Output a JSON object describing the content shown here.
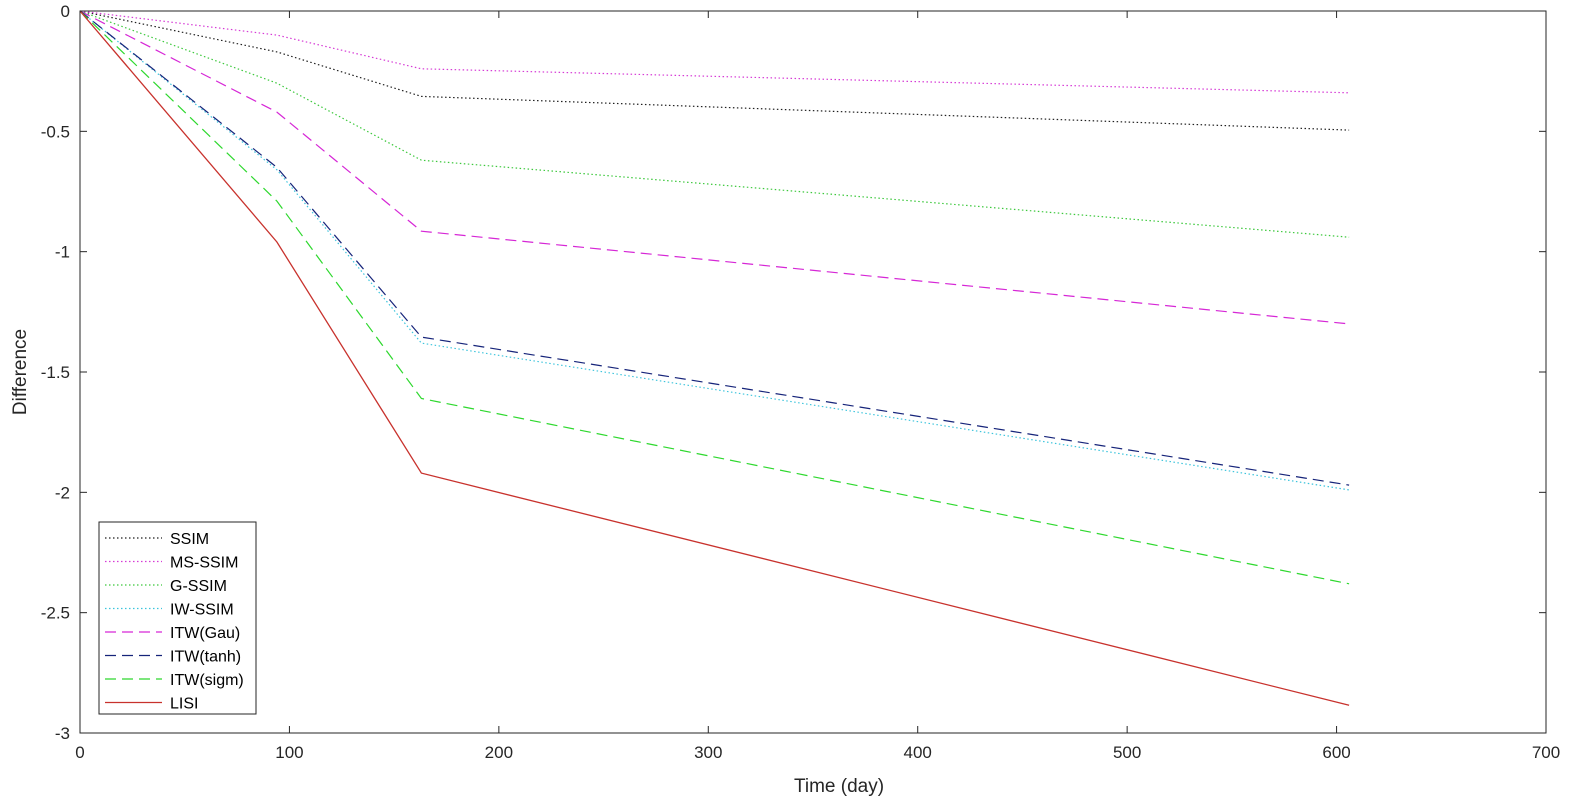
{
  "chart_data": {
    "type": "line",
    "title": "",
    "xlabel": "Time (day)",
    "ylabel": "Difference",
    "xlim": [
      0,
      700
    ],
    "ylim": [
      -3,
      0
    ],
    "xticks": [
      0,
      100,
      200,
      300,
      400,
      500,
      600,
      700
    ],
    "yticks": [
      0,
      -0.5,
      -1,
      -1.5,
      -2,
      -2.5,
      -3
    ],
    "xtick_labels": [
      "0",
      "100",
      "200",
      "300",
      "400",
      "500",
      "600",
      "700"
    ],
    "ytick_labels": [
      "0",
      "-0.5",
      "-1",
      "-1.5",
      "-2",
      "-2.5",
      "-3"
    ],
    "grid": false,
    "legend_position": "bottom-left",
    "x": [
      0,
      94,
      163,
      606
    ],
    "series": [
      {
        "name": "SSIM",
        "values": [
          0,
          -0.17,
          -0.355,
          -0.495
        ],
        "color": "#1f1f1f",
        "style": "dotted"
      },
      {
        "name": "MS-SSIM",
        "values": [
          0,
          -0.1,
          -0.24,
          -0.34
        ],
        "color": "#d63ad6",
        "style": "dotted"
      },
      {
        "name": "G-SSIM",
        "values": [
          0,
          -0.3,
          -0.62,
          -0.94
        ],
        "color": "#3cc83c",
        "style": "dotted"
      },
      {
        "name": "IW-SSIM",
        "values": [
          0,
          -0.66,
          -1.38,
          -1.99
        ],
        "color": "#3cc4dc",
        "style": "dotted"
      },
      {
        "name": "ITW(Gau)",
        "values": [
          0,
          -0.42,
          -0.915,
          -1.3
        ],
        "color": "#d627d6",
        "style": "dashed"
      },
      {
        "name": "ITW(tanh)",
        "values": [
          0,
          -0.65,
          -1.355,
          -1.97
        ],
        "color": "#16247a",
        "style": "dashed"
      },
      {
        "name": "ITW(sigm)",
        "values": [
          0,
          -0.79,
          -1.61,
          -2.38
        ],
        "color": "#2ed82e",
        "style": "dashed"
      },
      {
        "name": "LISI",
        "values": [
          0,
          -0.96,
          -1.92,
          -2.885
        ],
        "color": "#c8322d",
        "style": "solid"
      }
    ]
  }
}
